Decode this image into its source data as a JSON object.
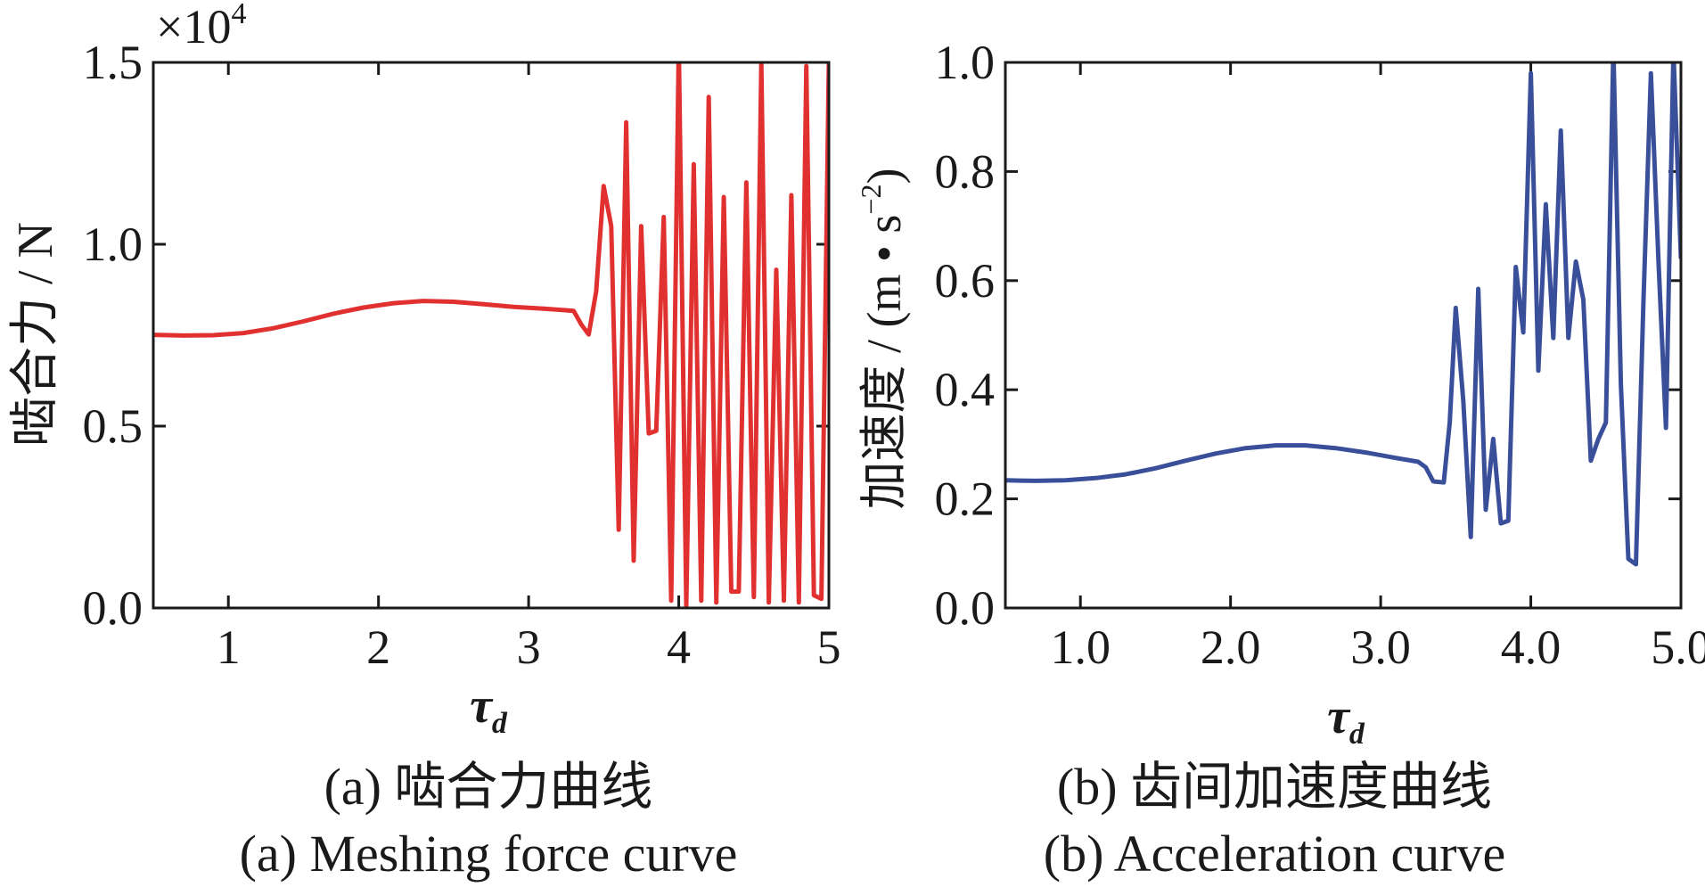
{
  "chart_data": [
    {
      "type": "line",
      "panel": "a",
      "caption_cn": "(a) 啮合力曲线",
      "caption_en": "(a) Meshing force curve",
      "ylabel": "啮合力 / N",
      "xlabel": "τ",
      "xlabel_sub": "d",
      "ylabel_multiplier": "×10",
      "ylabel_multiplier_exp": "4",
      "xlim": [
        0.5,
        5.0
      ],
      "ylim": [
        0.0,
        1.5
      ],
      "x_ticks": [
        1,
        2,
        3,
        4,
        5
      ],
      "x_tick_labels": [
        "1",
        "2",
        "3",
        "4",
        "5"
      ],
      "y_ticks": [
        0.0,
        0.5,
        1.0,
        1.5
      ],
      "y_tick_labels": [
        "0.0",
        "0.5",
        "1.0",
        "1.5"
      ],
      "color": "#e03030",
      "series": [
        {
          "x": [
            0.5,
            0.7,
            0.9,
            1.1,
            1.3,
            1.5,
            1.7,
            1.9,
            2.1,
            2.3,
            2.5,
            2.7,
            2.9,
            3.1,
            3.3,
            3.35,
            3.4,
            3.45,
            3.5,
            3.55,
            3.6,
            3.65,
            3.7,
            3.75,
            3.8,
            3.85,
            3.9,
            3.95,
            4.0,
            4.05,
            4.1,
            4.15,
            4.2,
            4.25,
            4.3,
            4.35,
            4.4,
            4.45,
            4.5,
            4.55,
            4.6,
            4.65,
            4.7,
            4.75,
            4.8,
            4.85,
            4.9,
            4.95,
            5.0
          ],
          "y": [
            0.751,
            0.749,
            0.75,
            0.756,
            0.769,
            0.788,
            0.809,
            0.826,
            0.838,
            0.844,
            0.842,
            0.835,
            0.828,
            0.823,
            0.817,
            0.78,
            0.752,
            0.87,
            1.16,
            1.05,
            0.215,
            1.335,
            0.13,
            1.05,
            0.48,
            0.487,
            1.075,
            0.02,
            1.55,
            0.005,
            1.22,
            0.02,
            1.405,
            0.015,
            1.13,
            0.045,
            0.045,
            1.17,
            0.03,
            1.5,
            0.015,
            0.93,
            0.02,
            1.135,
            0.015,
            1.49,
            0.035,
            0.025,
            1.505
          ]
        }
      ]
    },
    {
      "type": "line",
      "panel": "b",
      "caption_cn": "(b) 齿间加速度曲线",
      "caption_en": "(b) Acceleration curve",
      "ylabel": "加速度 / (m • s",
      "ylabel_exp": "−2",
      "ylabel_close": ")",
      "xlabel": "τ",
      "xlabel_sub": "d",
      "xlim": [
        0.5,
        5.0
      ],
      "ylim": [
        0.0,
        1.0
      ],
      "x_ticks": [
        1,
        2,
        3,
        4,
        5
      ],
      "x_tick_labels": [
        "1.0",
        "2.0",
        "3.0",
        "4.0",
        "5.0"
      ],
      "y_ticks": [
        0.0,
        0.2,
        0.4,
        0.6,
        0.8,
        1.0
      ],
      "y_tick_labels": [
        "0.0",
        "0.2",
        "0.4",
        "0.6",
        "0.8",
        "1.0"
      ],
      "color": "#3a4f9a",
      "series": [
        {
          "x": [
            0.5,
            0.7,
            0.9,
            1.1,
            1.3,
            1.5,
            1.7,
            1.9,
            2.1,
            2.3,
            2.5,
            2.7,
            2.9,
            3.1,
            3.25,
            3.3,
            3.35,
            3.42,
            3.46,
            3.5,
            3.55,
            3.6,
            3.65,
            3.7,
            3.75,
            3.8,
            3.85,
            3.9,
            3.95,
            4.0,
            4.05,
            4.1,
            4.15,
            4.2,
            4.25,
            4.3,
            4.35,
            4.4,
            4.45,
            4.5,
            4.55,
            4.6,
            4.65,
            4.7,
            4.75,
            4.8,
            4.85,
            4.9,
            4.95,
            5.0
          ],
          "y": [
            0.234,
            0.233,
            0.234,
            0.238,
            0.245,
            0.256,
            0.27,
            0.283,
            0.293,
            0.298,
            0.298,
            0.293,
            0.285,
            0.275,
            0.268,
            0.258,
            0.232,
            0.23,
            0.34,
            0.55,
            0.38,
            0.13,
            0.585,
            0.18,
            0.31,
            0.155,
            0.16,
            0.625,
            0.505,
            0.98,
            0.435,
            0.74,
            0.495,
            0.875,
            0.495,
            0.635,
            0.565,
            0.27,
            0.31,
            0.34,
            1.025,
            0.41,
            0.09,
            0.08,
            0.56,
            0.98,
            0.64,
            0.33,
            1.02,
            0.64
          ]
        }
      ]
    }
  ]
}
